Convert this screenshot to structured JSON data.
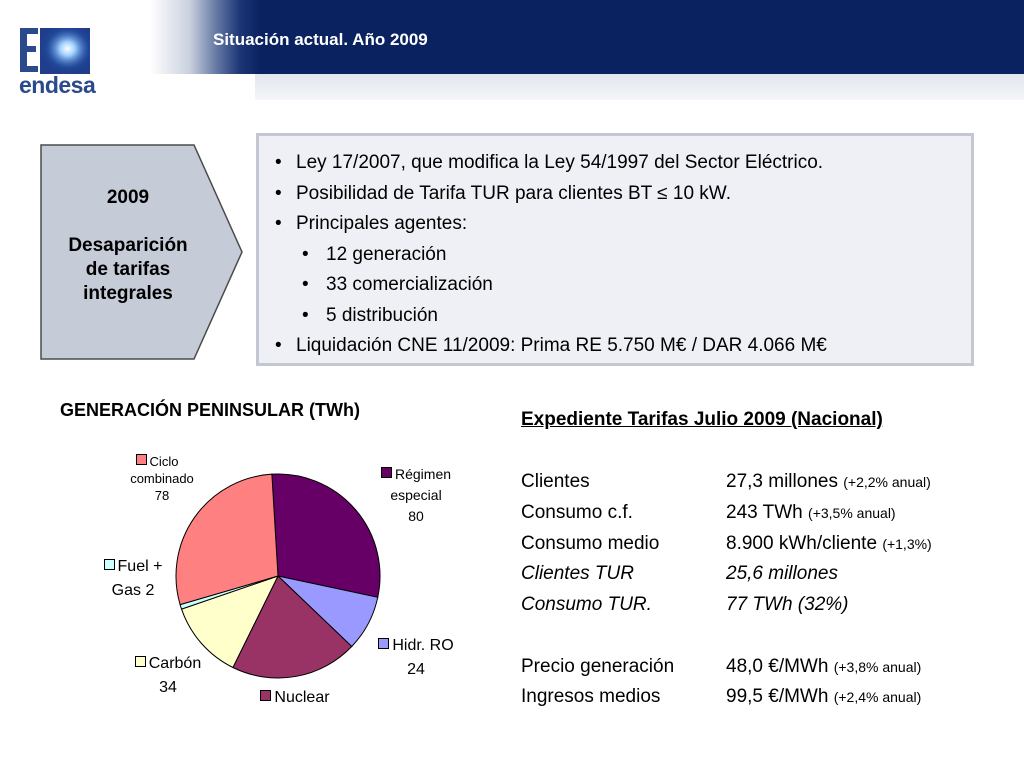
{
  "header": {
    "title": "Situación actual. Año 2009",
    "logo_text": "endesa",
    "colors": {
      "navy": "#0b2260",
      "logo_blue": "#2b4a8c"
    }
  },
  "pentagon": {
    "year": "2009",
    "line1": "Desaparición",
    "line2": "de tarifas",
    "line3": "integrales"
  },
  "bullets": {
    "items": [
      "Ley 17/2007, que modifica la Ley 54/1997 del Sector Eléctrico.",
      "Posibilidad de Tarifa TUR para clientes BT ≤ 10 kW.",
      "Principales agentes:",
      "12 generación",
      "33 comercialización",
      "5 distribución",
      "Liquidación CNE 11/2009: Prima RE 5.750 M€ / DAR 4.066 M€"
    ]
  },
  "chart_data": {
    "type": "pie",
    "title": "GENERACIÓN PENINSULAR (TWh)",
    "slices": [
      {
        "name": "Régimen especial",
        "value": 80,
        "color": "#660066"
      },
      {
        "name": "Hidr. RO",
        "value": 24,
        "color": "#9999ff"
      },
      {
        "name": "Nuclear",
        "value": 55,
        "color": "#993366"
      },
      {
        "name": "Carbón",
        "value": 34,
        "color": "#ffffcc"
      },
      {
        "name": "Fuel + Gas",
        "value": 2,
        "color": "#ccffff"
      },
      {
        "name": "Ciclo combinado",
        "value": 78,
        "color": "#ff8080"
      }
    ],
    "labels": {
      "ciclo_l1": "Ciclo",
      "ciclo_l2": "combinado",
      "ciclo_v": "78",
      "regimen_l1": "Régimen",
      "regimen_l2": "especial",
      "regimen_v": "80",
      "fuel_l1": "Fuel +",
      "fuel_l2": "Gas 2",
      "hidr_l1": "Hidr. RO",
      "hidr_v": "24",
      "carbon_l1": "Carbón",
      "carbon_v": "34",
      "nuclear_l1": "Nuclear"
    }
  },
  "info": {
    "title": "Expediente Tarifas Julio 2009 (Nacional)",
    "rows": [
      {
        "key": "Clientes",
        "value": "27,3 millones",
        "note": "(+2,2% anual)"
      },
      {
        "key": "Consumo c.f.",
        "value": "243 TWh",
        "note": "(+3,5% anual)"
      },
      {
        "key": "Consumo medio",
        "value": "8.900 kWh/cliente",
        "note": "(+1,3%)"
      },
      {
        "key": "Clientes TUR",
        "value": "25,6 millones",
        "note": ""
      },
      {
        "key": "Consumo TUR.",
        "value": "77 TWh (32%)",
        "note": ""
      },
      {
        "key": "Precio generación",
        "value": "48,0 €/MWh",
        "note": "(+3,8% anual)"
      },
      {
        "key": "Ingresos medios",
        "value": "99,5 €/MWh",
        "note": "(+2,4% anual)"
      }
    ]
  }
}
